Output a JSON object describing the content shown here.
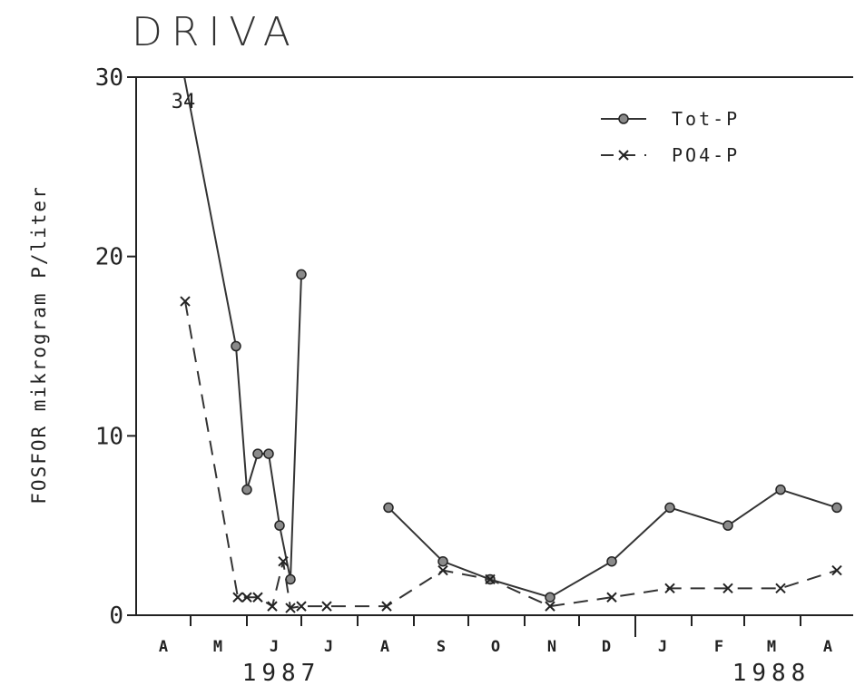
{
  "chart_data": {
    "type": "line",
    "title": "DRIVA",
    "ylabel": "FOSFOR mikrogram P/liter",
    "xlabel": "",
    "ylim": [
      0,
      30
    ],
    "yticks": [
      {
        "v": 0,
        "label": "0"
      },
      {
        "v": 10,
        "label": "10"
      },
      {
        "v": 20,
        "label": "20"
      },
      {
        "v": 30,
        "label": "30"
      }
    ],
    "xlim": [
      "1987-04-01",
      "1988-04-30"
    ],
    "month_labels": [
      {
        "date": "1987-04-16",
        "label": "A"
      },
      {
        "date": "1987-05-16",
        "label": "M"
      },
      {
        "date": "1987-06-16",
        "label": "J"
      },
      {
        "date": "1987-07-16",
        "label": "J"
      },
      {
        "date": "1987-08-16",
        "label": "A"
      },
      {
        "date": "1987-09-16",
        "label": "S"
      },
      {
        "date": "1987-10-16",
        "label": "O"
      },
      {
        "date": "1987-11-16",
        "label": "N"
      },
      {
        "date": "1987-12-16",
        "label": "D"
      },
      {
        "date": "1988-01-16",
        "label": "J"
      },
      {
        "date": "1988-02-16",
        "label": "F"
      },
      {
        "date": "1988-03-16",
        "label": "M"
      },
      {
        "date": "1988-04-16",
        "label": "A"
      }
    ],
    "year_labels": [
      {
        "date": "1987-06-20",
        "label": "1987"
      },
      {
        "date": "1988-03-16",
        "label": "1988"
      }
    ],
    "annotations": [
      {
        "date": "1987-04-27",
        "value": 34,
        "label": "34"
      }
    ],
    "legend_position": "top-right",
    "series": [
      {
        "name": "Tot-P",
        "style": "solid",
        "marker": "circle",
        "color": "#333333",
        "segments": [
          [
            {
              "x": "1987-04-20",
              "y": 34
            },
            {
              "x": "1987-05-26",
              "y": 15
            },
            {
              "x": "1987-06-01",
              "y": 7
            },
            {
              "x": "1987-06-07",
              "y": 9
            },
            {
              "x": "1987-06-13",
              "y": 9
            },
            {
              "x": "1987-06-19",
              "y": 5
            },
            {
              "x": "1987-06-25",
              "y": 2
            },
            {
              "x": "1987-07-01",
              "y": 19
            }
          ],
          [
            {
              "x": "1987-08-18",
              "y": 6
            },
            {
              "x": "1987-09-17",
              "y": 3
            },
            {
              "x": "1987-10-13",
              "y": 2
            },
            {
              "x": "1987-11-15",
              "y": 1
            },
            {
              "x": "1987-12-19",
              "y": 3
            },
            {
              "x": "1988-01-20",
              "y": 6
            },
            {
              "x": "1988-02-21",
              "y": 5
            },
            {
              "x": "1988-03-21",
              "y": 7
            },
            {
              "x": "1988-04-21",
              "y": 6
            }
          ]
        ]
      },
      {
        "name": "PO4-P",
        "style": "dashed",
        "marker": "x",
        "color": "#333333",
        "segments": [
          [
            {
              "x": "1987-04-28",
              "y": 17.5
            },
            {
              "x": "1987-05-27",
              "y": 1
            },
            {
              "x": "1987-06-01",
              "y": 1
            },
            {
              "x": "1987-06-07",
              "y": 1
            },
            {
              "x": "1987-06-15",
              "y": 0.5
            },
            {
              "x": "1987-06-21",
              "y": 3
            },
            {
              "x": "1987-06-25",
              "y": 0.4
            },
            {
              "x": "1987-07-01",
              "y": 0.5
            },
            {
              "x": "1987-07-15",
              "y": 0.5
            },
            {
              "x": "1987-08-17",
              "y": 0.5
            },
            {
              "x": "1987-09-17",
              "y": 2.5
            },
            {
              "x": "1987-10-13",
              "y": 2
            },
            {
              "x": "1987-11-15",
              "y": 0.5
            },
            {
              "x": "1987-12-19",
              "y": 1
            },
            {
              "x": "1988-01-20",
              "y": 1.5
            },
            {
              "x": "1988-02-21",
              "y": 1.5
            },
            {
              "x": "1988-03-21",
              "y": 1.5
            },
            {
              "x": "1988-04-21",
              "y": 2.5
            }
          ]
        ]
      }
    ]
  }
}
